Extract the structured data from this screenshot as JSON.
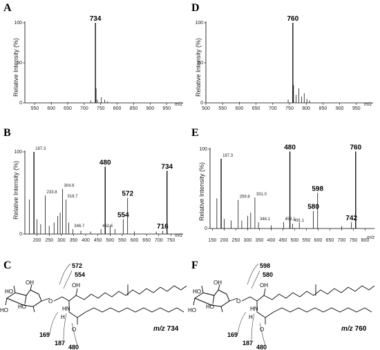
{
  "panels": {
    "A": {
      "label": "A",
      "ylabel": "Relative Intensity (%)",
      "xunit": "m/z"
    },
    "B": {
      "label": "B",
      "ylabel": "Relative Intensity (%)",
      "xunit": "m/z"
    },
    "C": {
      "label": "C",
      "compound": "m/z 734"
    },
    "D": {
      "label": "D",
      "ylabel": "Relative Intensity (%)",
      "xunit": "m/z"
    },
    "E": {
      "label": "E",
      "ylabel": "Relative Intensity (%)",
      "xunit": "m/z"
    },
    "F": {
      "label": "F",
      "compound": "m/z 760"
    }
  },
  "structure_C": {
    "frag_572": "572",
    "frag_554": "554",
    "frag_169": "169",
    "frag_187": "187",
    "frag_480": "480",
    "atom_HO1": "HO",
    "atom_HO2": "HO",
    "atom_OH": "OH",
    "atom_O": "O",
    "atom_HN": "HN",
    "atom_H": "H",
    "atom_H2": "H",
    "atom_Ocarb": "O",
    "atom_OH2": "OH",
    "mz_prefix": "m/z",
    "mz_value": "734"
  },
  "structure_F": {
    "frag_598": "598",
    "frag_580": "580",
    "frag_169": "169",
    "frag_187": "187",
    "frag_480": "480",
    "atom_HO1": "HO",
    "atom_HO2": "HO",
    "atom_OH": "OH",
    "atom_O": "O",
    "atom_HN": "HN",
    "atom_H": "H",
    "atom_H2": "H",
    "atom_Ocarb": "O",
    "atom_OH2": "OH",
    "mz_prefix": "m/z",
    "mz_value": "760"
  },
  "chart_data": [
    {
      "panel": "A",
      "type": "bar",
      "xlabel": "m/z",
      "ylabel": "Relative Intensity (%)",
      "xlim": [
        520,
        1000
      ],
      "ylim": [
        0,
        100
      ],
      "xticks": [
        550,
        600,
        650,
        700,
        750,
        800,
        850,
        900,
        950
      ],
      "yticks": [
        0,
        50,
        100
      ],
      "peaks": [
        {
          "x": 734,
          "y": 100,
          "label": "734",
          "bold": true
        },
        {
          "x": 720,
          "y": 3
        },
        {
          "x": 736,
          "y": 18
        },
        {
          "x": 740,
          "y": 4
        },
        {
          "x": 752,
          "y": 7
        },
        {
          "x": 762,
          "y": 4
        },
        {
          "x": 770,
          "y": 2
        },
        {
          "x": 600,
          "y": 1
        },
        {
          "x": 650,
          "y": 1
        }
      ]
    },
    {
      "panel": "B",
      "type": "bar",
      "xlabel": "m/z",
      "ylabel": "Relative Intensity (%)",
      "xlim": [
        150,
        800
      ],
      "ylim": [
        0,
        100
      ],
      "xticks": [
        200,
        250,
        300,
        350,
        400,
        450,
        500,
        550,
        600,
        650,
        700,
        750
      ],
      "yticks": [
        0,
        100
      ],
      "peaks": [
        {
          "x": 169,
          "y": 42
        },
        {
          "x": 187.3,
          "y": 100,
          "label": "187.3"
        },
        {
          "x": 200,
          "y": 18
        },
        {
          "x": 215,
          "y": 12
        },
        {
          "x": 233.8,
          "y": 47,
          "label": "233.8"
        },
        {
          "x": 250,
          "y": 10
        },
        {
          "x": 270,
          "y": 14
        },
        {
          "x": 285,
          "y": 22
        },
        {
          "x": 295,
          "y": 26
        },
        {
          "x": 304.6,
          "y": 55,
          "label": "304.6"
        },
        {
          "x": 318.7,
          "y": 42,
          "label": "318.7"
        },
        {
          "x": 330,
          "y": 14
        },
        {
          "x": 346.7,
          "y": 6,
          "label": "346.7"
        },
        {
          "x": 380,
          "y": 4
        },
        {
          "x": 420,
          "y": 3
        },
        {
          "x": 462.6,
          "y": 6,
          "label": "462.6"
        },
        {
          "x": 480,
          "y": 82,
          "label": "480",
          "bold": true
        },
        {
          "x": 500,
          "y": 10
        },
        {
          "x": 520,
          "y": 6
        },
        {
          "x": 554,
          "y": 18,
          "label": "554",
          "bold": true
        },
        {
          "x": 572,
          "y": 44,
          "label": "572",
          "bold": true
        },
        {
          "x": 600,
          "y": 3
        },
        {
          "x": 690,
          "y": 3
        },
        {
          "x": 716,
          "y": 4,
          "label": "716",
          "bold": true
        },
        {
          "x": 734,
          "y": 77,
          "label": "734",
          "bold": true
        }
      ]
    },
    {
      "panel": "D",
      "type": "bar",
      "xlabel": "m/z",
      "ylabel": "Relative Intensity (%)",
      "xlim": [
        500,
        1000
      ],
      "ylim": [
        0,
        100
      ],
      "xticks": [
        500,
        550,
        600,
        650,
        700,
        750,
        800,
        850,
        900,
        950
      ],
      "yticks": [
        0,
        50,
        100
      ],
      "peaks": [
        {
          "x": 760,
          "y": 100,
          "label": "760",
          "bold": true
        },
        {
          "x": 746,
          "y": 4
        },
        {
          "x": 762,
          "y": 22
        },
        {
          "x": 770,
          "y": 10
        },
        {
          "x": 778,
          "y": 18
        },
        {
          "x": 786,
          "y": 8
        },
        {
          "x": 794,
          "y": 12
        },
        {
          "x": 802,
          "y": 5
        },
        {
          "x": 810,
          "y": 3
        },
        {
          "x": 600,
          "y": 1
        }
      ]
    },
    {
      "panel": "E",
      "type": "bar",
      "xlabel": "m/z",
      "ylabel": "Relative Intensity (%)",
      "xlim": [
        140,
        840
      ],
      "ylim": [
        0,
        100
      ],
      "xticks": [
        150,
        200,
        250,
        300,
        350,
        400,
        450,
        500,
        550,
        600,
        650,
        700,
        750,
        800
      ],
      "yticks": [
        0,
        100
      ],
      "peaks": [
        {
          "x": 169,
          "y": 38
        },
        {
          "x": 187.3,
          "y": 88,
          "label": "187.3"
        },
        {
          "x": 200,
          "y": 12
        },
        {
          "x": 230,
          "y": 10
        },
        {
          "x": 259.8,
          "y": 36,
          "label": "259.8"
        },
        {
          "x": 275,
          "y": 10
        },
        {
          "x": 300,
          "y": 16
        },
        {
          "x": 313,
          "y": 20
        },
        {
          "x": 331.0,
          "y": 39,
          "label": "331.0"
        },
        {
          "x": 346.1,
          "y": 8,
          "label": "346.1"
        },
        {
          "x": 400,
          "y": 4
        },
        {
          "x": 453.1,
          "y": 8,
          "label": "453.1"
        },
        {
          "x": 480,
          "y": 97,
          "label": "480",
          "bold": true
        },
        {
          "x": 491.1,
          "y": 6,
          "label": "491.1"
        },
        {
          "x": 520,
          "y": 8
        },
        {
          "x": 580,
          "y": 22,
          "label": "580",
          "bold": true
        },
        {
          "x": 598,
          "y": 45,
          "label": "598",
          "bold": true
        },
        {
          "x": 700,
          "y": 3
        },
        {
          "x": 742,
          "y": 8,
          "label": "742",
          "bold": true
        },
        {
          "x": 760,
          "y": 97,
          "label": "760",
          "bold": true
        }
      ]
    }
  ]
}
